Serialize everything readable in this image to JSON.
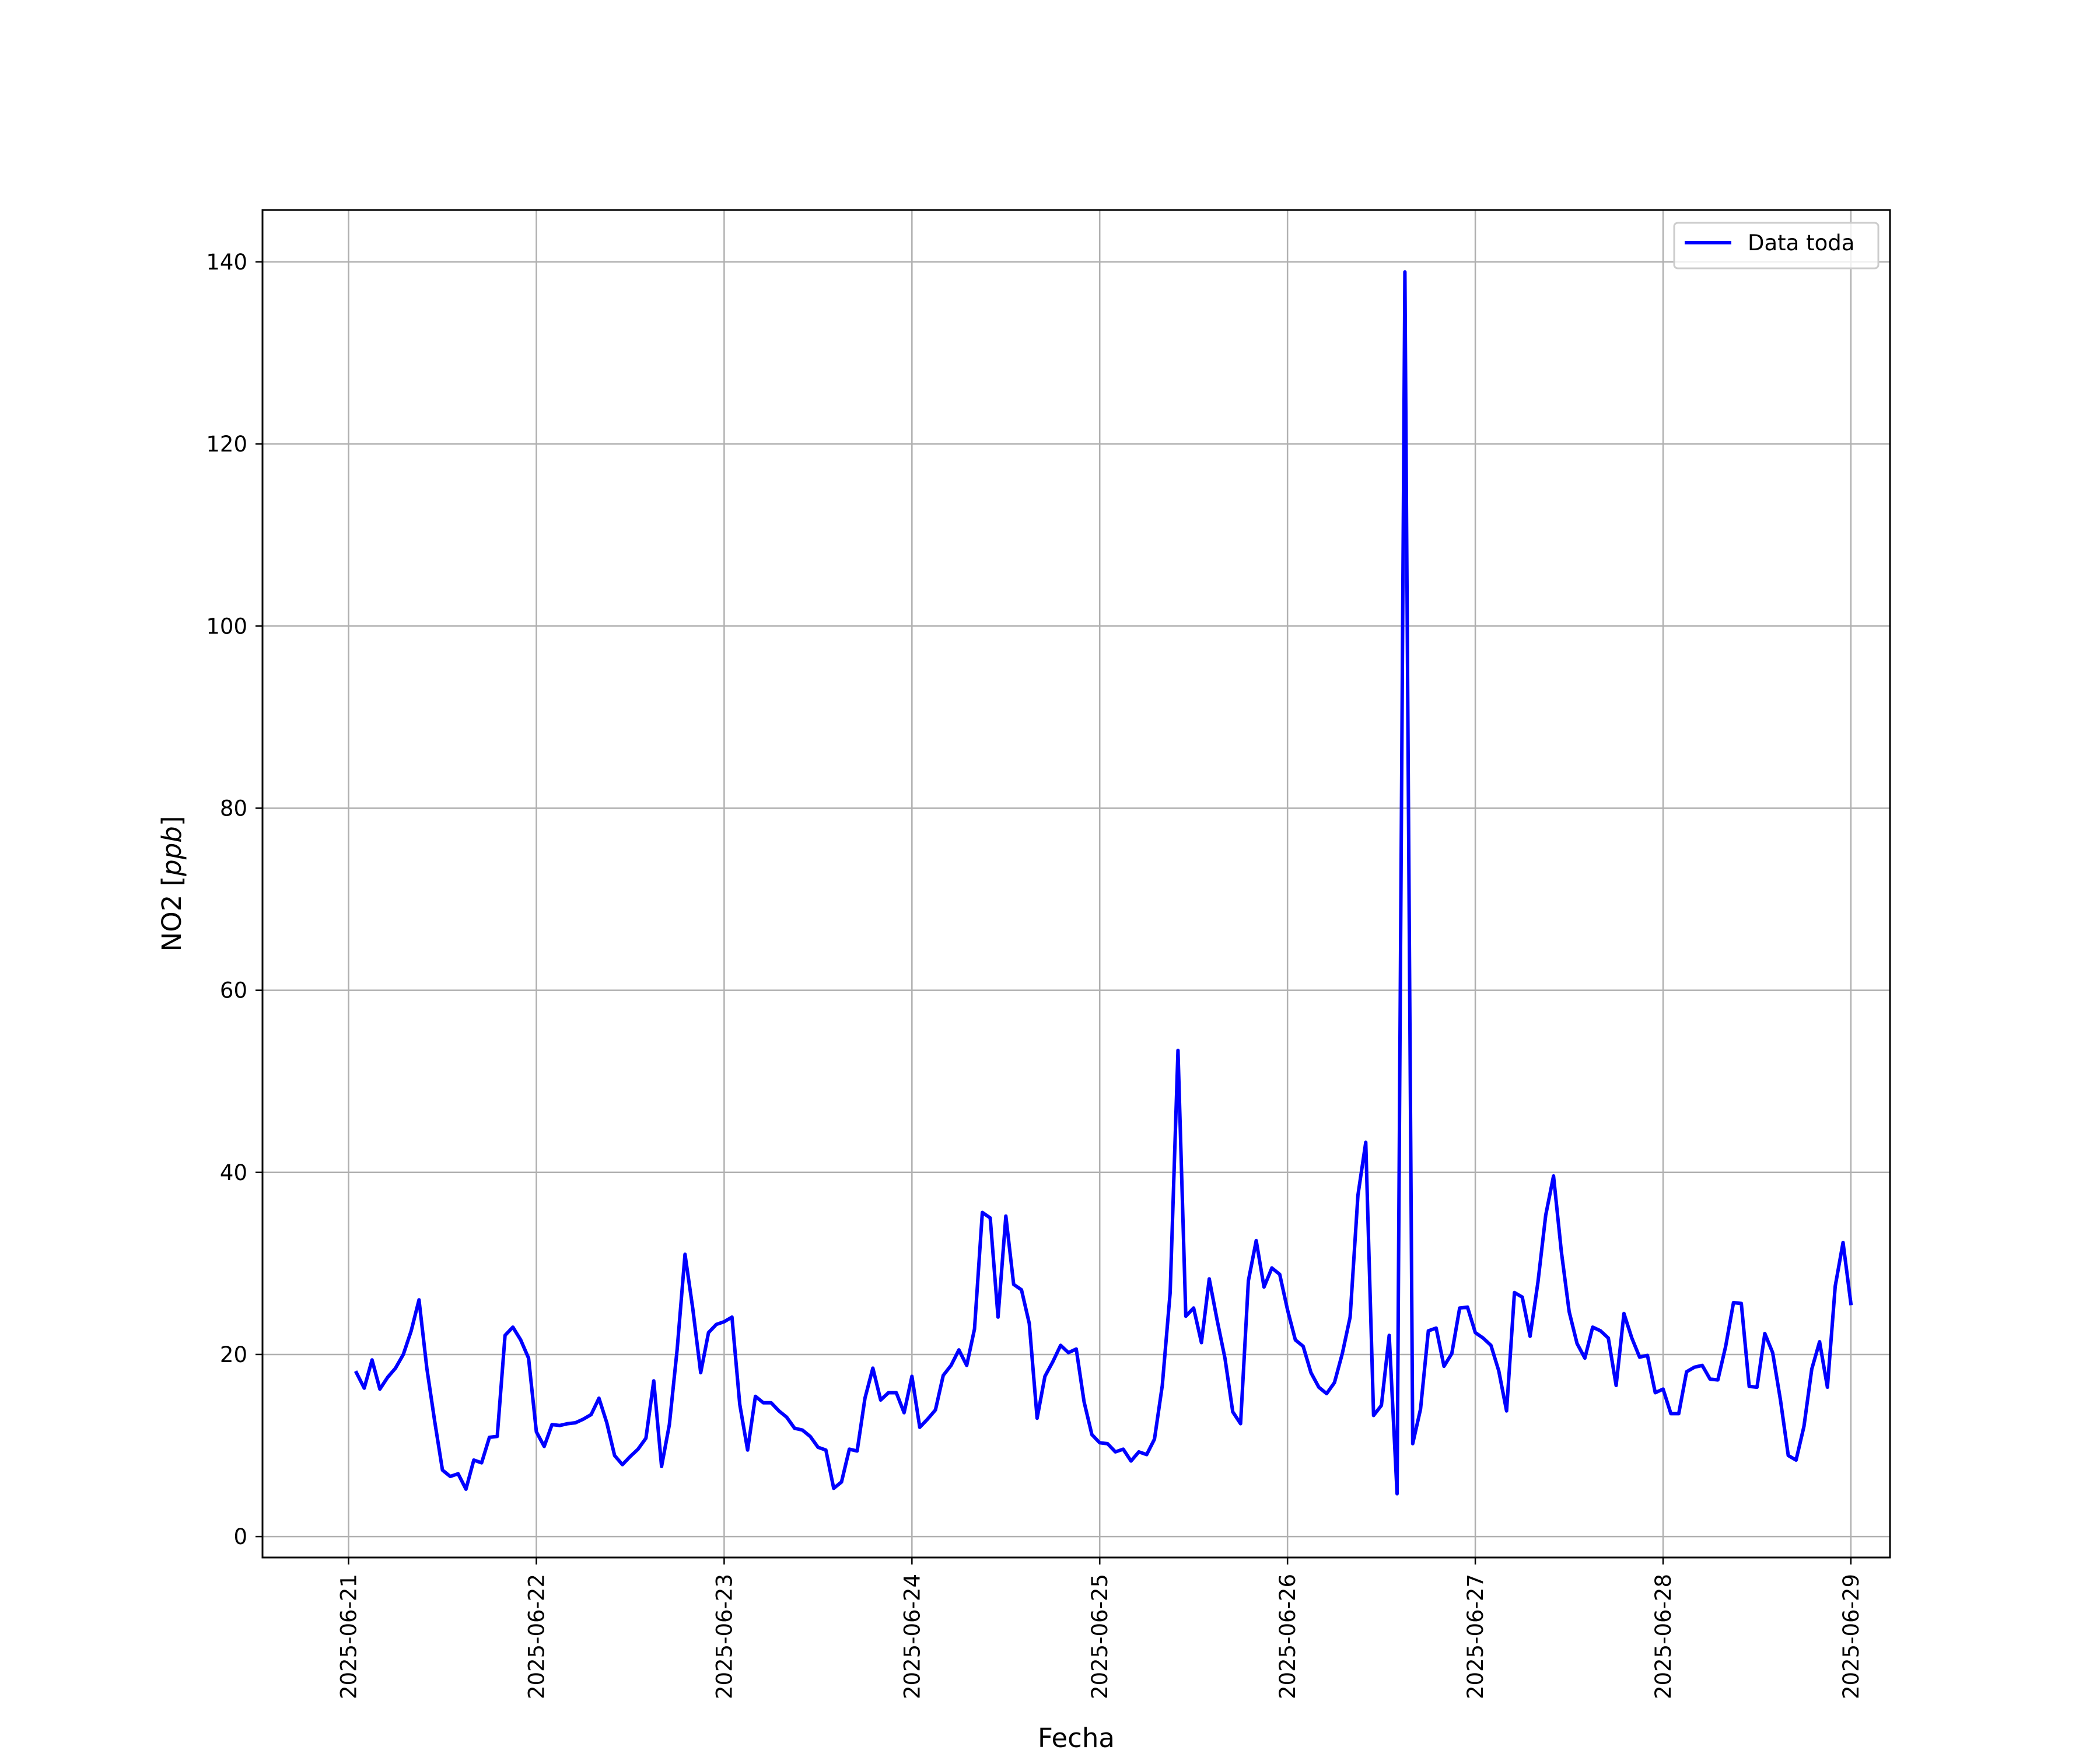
{
  "chart_data": {
    "type": "line",
    "xlabel": "Fecha",
    "ylabel": "NO2 [ppb]",
    "ylabel_italic_part": "ppb",
    "xlim": [
      "2025-06-20T13:00",
      "2025-06-29T05:00"
    ],
    "ylim": [
      -2.3,
      145.7
    ],
    "grid": true,
    "legend_position": "top-right",
    "x_ticks": [
      "2025-06-21",
      "2025-06-22",
      "2025-06-23",
      "2025-06-24",
      "2025-06-25",
      "2025-06-26",
      "2025-06-27",
      "2025-06-28",
      "2025-06-29"
    ],
    "y_ticks": [
      "0",
      "20",
      "40",
      "60",
      "80",
      "100",
      "120",
      "140"
    ],
    "series": [
      {
        "name": "Data toda",
        "color": "#0000ff",
        "x": [
          "2025-06-21T01:00",
          "2025-06-21T02:00",
          "2025-06-21T03:00",
          "2025-06-21T04:00",
          "2025-06-21T05:00",
          "2025-06-21T06:00",
          "2025-06-21T07:00",
          "2025-06-21T08:00",
          "2025-06-21T09:00",
          "2025-06-21T10:00",
          "2025-06-21T11:00",
          "2025-06-21T12:00",
          "2025-06-21T13:00",
          "2025-06-21T14:00",
          "2025-06-21T15:00",
          "2025-06-21T16:00",
          "2025-06-21T17:00",
          "2025-06-21T18:00",
          "2025-06-21T19:00",
          "2025-06-21T20:00",
          "2025-06-21T21:00",
          "2025-06-21T22:00",
          "2025-06-21T23:00",
          "2025-06-22T00:00",
          "2025-06-22T01:00",
          "2025-06-22T02:00",
          "2025-06-22T03:00",
          "2025-06-22T04:00",
          "2025-06-22T05:00",
          "2025-06-22T06:00",
          "2025-06-22T07:00",
          "2025-06-22T08:00",
          "2025-06-22T09:00",
          "2025-06-22T10:00",
          "2025-06-22T11:00",
          "2025-06-22T12:00",
          "2025-06-22T13:00",
          "2025-06-22T14:00",
          "2025-06-22T15:00",
          "2025-06-22T16:00",
          "2025-06-22T17:00",
          "2025-06-22T18:00",
          "2025-06-22T19:00",
          "2025-06-22T20:00",
          "2025-06-22T21:00",
          "2025-06-22T22:00",
          "2025-06-22T23:00",
          "2025-06-23T00:00",
          "2025-06-23T01:00",
          "2025-06-23T02:00",
          "2025-06-23T03:00",
          "2025-06-23T04:00",
          "2025-06-23T05:00",
          "2025-06-23T06:00",
          "2025-06-23T07:00",
          "2025-06-23T08:00",
          "2025-06-23T09:00",
          "2025-06-23T10:00",
          "2025-06-23T11:00",
          "2025-06-23T12:00",
          "2025-06-23T13:00",
          "2025-06-23T14:00",
          "2025-06-23T15:00",
          "2025-06-23T16:00",
          "2025-06-23T17:00",
          "2025-06-23T18:00",
          "2025-06-23T19:00",
          "2025-06-23T20:00",
          "2025-06-23T21:00",
          "2025-06-23T22:00",
          "2025-06-23T23:00",
          "2025-06-24T00:00",
          "2025-06-24T01:00",
          "2025-06-24T02:00",
          "2025-06-24T03:00",
          "2025-06-24T04:00",
          "2025-06-24T05:00",
          "2025-06-24T06:00",
          "2025-06-24T07:00",
          "2025-06-24T08:00",
          "2025-06-24T09:00",
          "2025-06-24T10:00",
          "2025-06-24T11:00",
          "2025-06-24T12:00",
          "2025-06-24T13:00",
          "2025-06-24T14:00",
          "2025-06-24T15:00",
          "2025-06-24T16:00",
          "2025-06-24T17:00",
          "2025-06-24T18:00",
          "2025-06-24T19:00",
          "2025-06-24T20:00",
          "2025-06-24T21:00",
          "2025-06-24T22:00",
          "2025-06-24T23:00",
          "2025-06-25T00:00",
          "2025-06-25T01:00",
          "2025-06-25T02:00",
          "2025-06-25T03:00",
          "2025-06-25T04:00",
          "2025-06-25T05:00",
          "2025-06-25T06:00",
          "2025-06-25T07:00",
          "2025-06-25T08:00",
          "2025-06-25T09:00",
          "2025-06-25T10:00",
          "2025-06-25T11:00",
          "2025-06-25T12:00",
          "2025-06-25T13:00",
          "2025-06-25T14:00",
          "2025-06-25T15:00",
          "2025-06-25T16:00",
          "2025-06-25T17:00",
          "2025-06-25T18:00",
          "2025-06-25T19:00",
          "2025-06-25T20:00",
          "2025-06-25T21:00",
          "2025-06-25T22:00",
          "2025-06-25T23:00",
          "2025-06-26T00:00",
          "2025-06-26T01:00",
          "2025-06-26T02:00",
          "2025-06-26T03:00",
          "2025-06-26T04:00",
          "2025-06-26T05:00",
          "2025-06-26T06:00",
          "2025-06-26T07:00",
          "2025-06-26T08:00",
          "2025-06-26T09:00",
          "2025-06-26T10:00",
          "2025-06-26T11:00",
          "2025-06-26T12:00",
          "2025-06-26T13:00",
          "2025-06-26T14:00",
          "2025-06-26T15:00",
          "2025-06-26T16:00",
          "2025-06-26T17:00",
          "2025-06-26T18:00",
          "2025-06-26T19:00",
          "2025-06-26T20:00",
          "2025-06-26T21:00",
          "2025-06-26T22:00",
          "2025-06-26T23:00",
          "2025-06-27T00:00",
          "2025-06-27T01:00",
          "2025-06-27T02:00",
          "2025-06-27T03:00",
          "2025-06-27T04:00",
          "2025-06-27T05:00",
          "2025-06-27T06:00",
          "2025-06-27T07:00",
          "2025-06-27T08:00",
          "2025-06-27T09:00",
          "2025-06-27T10:00",
          "2025-06-27T11:00",
          "2025-06-27T12:00",
          "2025-06-27T13:00",
          "2025-06-27T14:00",
          "2025-06-27T15:00",
          "2025-06-27T16:00",
          "2025-06-27T17:00",
          "2025-06-27T18:00",
          "2025-06-27T19:00",
          "2025-06-27T20:00",
          "2025-06-27T21:00",
          "2025-06-27T22:00",
          "2025-06-27T23:00",
          "2025-06-28T00:00",
          "2025-06-28T01:00",
          "2025-06-28T02:00",
          "2025-06-28T03:00",
          "2025-06-28T04:00",
          "2025-06-28T05:00",
          "2025-06-28T06:00",
          "2025-06-28T07:00",
          "2025-06-28T08:00",
          "2025-06-28T09:00",
          "2025-06-28T10:00",
          "2025-06-28T11:00",
          "2025-06-28T12:00",
          "2025-06-28T13:00",
          "2025-06-28T14:00",
          "2025-06-28T15:00",
          "2025-06-28T16:00",
          "2025-06-28T17:00",
          "2025-06-28T18:00",
          "2025-06-28T19:00",
          "2025-06-28T20:00",
          "2025-06-28T21:00",
          "2025-06-28T22:00",
          "2025-06-28T23:00",
          "2025-06-29T00:00"
        ],
        "values": [
          18,
          16.3,
          19.4,
          16.2,
          17.5,
          18.5,
          20,
          22.6,
          26,
          18.5,
          12.7,
          7.3,
          6.6,
          6.9,
          5.2,
          8.4,
          8.1,
          10.9,
          11,
          22.1,
          23,
          21.6,
          19.6,
          11.5,
          9.9,
          12.3,
          12.2,
          12.4,
          12.5,
          12.9,
          13.4,
          15.2,
          12.5,
          8.9,
          7.9,
          8.8,
          9.6,
          10.8,
          17.1,
          7.7,
          12.3,
          20.6,
          31,
          25,
          18,
          22.4,
          23.3,
          23.6,
          24.1,
          14.5,
          9.5,
          15.4,
          14.7,
          14.7,
          13.8,
          13.1,
          11.9,
          11.7,
          11,
          9.8,
          9.5,
          5.3,
          6,
          9.6,
          9.4,
          15.2,
          18.5,
          15,
          15.8,
          15.8,
          13.6,
          17.6,
          12,
          12.9,
          13.9,
          17.7,
          18.8,
          20.5,
          18.8,
          22.8,
          35.6,
          35,
          24.1,
          35.2,
          27.7,
          27.1,
          23.4,
          13,
          17.6,
          19.2,
          21,
          20.2,
          20.6,
          14.8,
          11.2,
          10.3,
          10.2,
          9.3,
          9.6,
          8.3,
          9.3,
          9,
          10.7,
          16.6,
          26.8,
          53.4,
          24.2,
          25.1,
          21.3,
          28.3,
          23.8,
          19.6,
          13.7,
          12.4,
          28.1,
          32.5,
          27.4,
          29.5,
          28.8,
          24.9,
          21.6,
          20.9,
          18,
          16.4,
          15.7,
          16.9,
          20.1,
          24.1,
          37.5,
          43.3,
          13.3,
          14.4,
          22.1,
          4.7,
          138.9,
          10.2,
          14,
          22.6,
          22.9,
          18.7,
          20.1,
          25.1,
          25.2,
          22.4,
          21.8,
          21,
          18.2,
          13.8,
          26.8,
          26.3,
          22,
          27.9,
          35.3,
          39.6,
          31.3,
          24.7,
          21.2,
          19.6,
          23,
          22.6,
          21.8,
          16.6,
          24.5,
          21.8,
          19.7,
          19.9,
          15.8,
          16.2,
          13.5,
          13.5,
          18.1,
          18.6,
          18.8,
          17.3,
          17.2,
          20.9,
          25.7,
          25.6,
          16.5,
          16.4,
          22.3,
          20.2,
          15,
          8.9,
          8.4,
          12.1,
          18.4,
          21.4,
          16.4,
          27.5,
          32.3,
          25.6
        ]
      }
    ]
  }
}
